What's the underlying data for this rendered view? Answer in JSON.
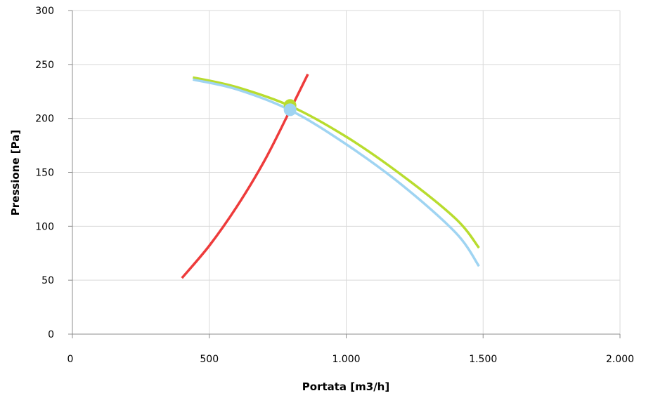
{
  "chart_data": {
    "type": "line",
    "title": "",
    "xlabel": "Portata [m3/h]",
    "ylabel": "Pressione [Pa]",
    "xlim": [
      0,
      2000
    ],
    "ylim": [
      0,
      300
    ],
    "x_ticks": [
      0,
      500,
      1000,
      1500,
      2000
    ],
    "x_tick_labels": [
      "0",
      "500",
      "1.000",
      "1.500",
      "2.000"
    ],
    "y_ticks": [
      0,
      50,
      100,
      150,
      200,
      250,
      300
    ],
    "y_tick_labels": [
      "0",
      "50",
      "100",
      "150",
      "200",
      "250",
      "300"
    ],
    "grid": true,
    "legend": "none",
    "series": [
      {
        "color": "#ee3b3b",
        "points": [
          [
            400,
            52
          ],
          [
            500,
            82
          ],
          [
            600,
            118
          ],
          [
            700,
            160
          ],
          [
            790,
            205
          ],
          [
            860,
            241
          ]
        ]
      },
      {
        "color": "#b8dc2e",
        "points": [
          [
            440,
            238
          ],
          [
            600,
            229
          ],
          [
            800,
            211
          ],
          [
            1000,
            183
          ],
          [
            1200,
            148
          ],
          [
            1400,
            107
          ],
          [
            1485,
            80
          ]
        ]
      },
      {
        "color": "#9fd4f2",
        "points": [
          [
            440,
            236
          ],
          [
            600,
            227
          ],
          [
            800,
            207
          ],
          [
            1000,
            176
          ],
          [
            1200,
            139
          ],
          [
            1400,
            94
          ],
          [
            1485,
            63
          ]
        ]
      }
    ],
    "operating_points": [
      {
        "x": 795,
        "y": 212,
        "color": "#b8dc2e"
      },
      {
        "x": 795,
        "y": 208,
        "color": "#9fd4f2"
      }
    ]
  }
}
